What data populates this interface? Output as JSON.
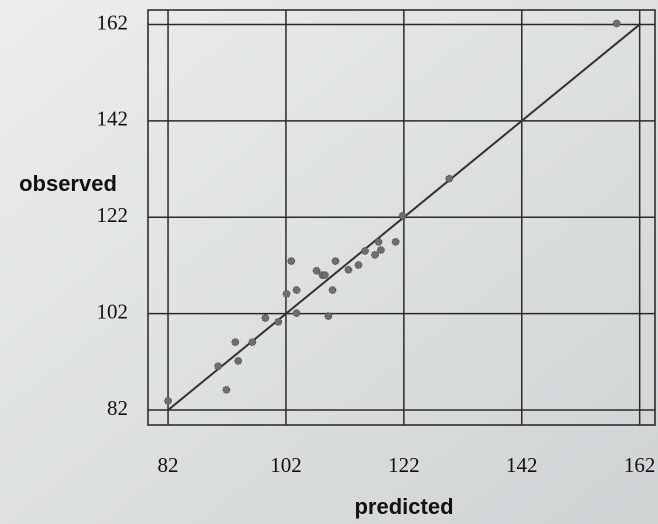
{
  "chart_data": {
    "type": "scatter",
    "x_label": "predicted",
    "y_label": "observed",
    "xlim": [
      78.6,
      164.6
    ],
    "ylim": [
      78.9,
      165
    ],
    "xticks": [
      82,
      102,
      122,
      142,
      162
    ],
    "yticks": [
      82,
      102,
      122,
      142,
      162
    ],
    "grid": true,
    "color": "#6e6e6e",
    "identity_line": {
      "x": [
        82,
        162
      ],
      "y": [
        82,
        162
      ],
      "color": "#333333"
    },
    "x": [
      82,
      158.1,
      129.7,
      121.8,
      90.5,
      91.9,
      93.4,
      93.9,
      96.3,
      98.5,
      100.7,
      102.1,
      102.9,
      103.8,
      103.8,
      107.2,
      108.2,
      108.6,
      109.2,
      109.9,
      110.4,
      112.6,
      114.3,
      115.4,
      117.1,
      117.7,
      120.6,
      118.1
    ],
    "y": [
      83.9,
      162.2,
      130,
      122.3,
      91.1,
      86.2,
      96.1,
      92.2,
      96.1,
      101.1,
      100.3,
      106.1,
      112.9,
      106.9,
      102.1,
      110.9,
      110,
      110,
      101.5,
      106.9,
      112.9,
      111.1,
      112.1,
      115,
      114.2,
      116.9,
      116.9,
      115.2
    ]
  }
}
